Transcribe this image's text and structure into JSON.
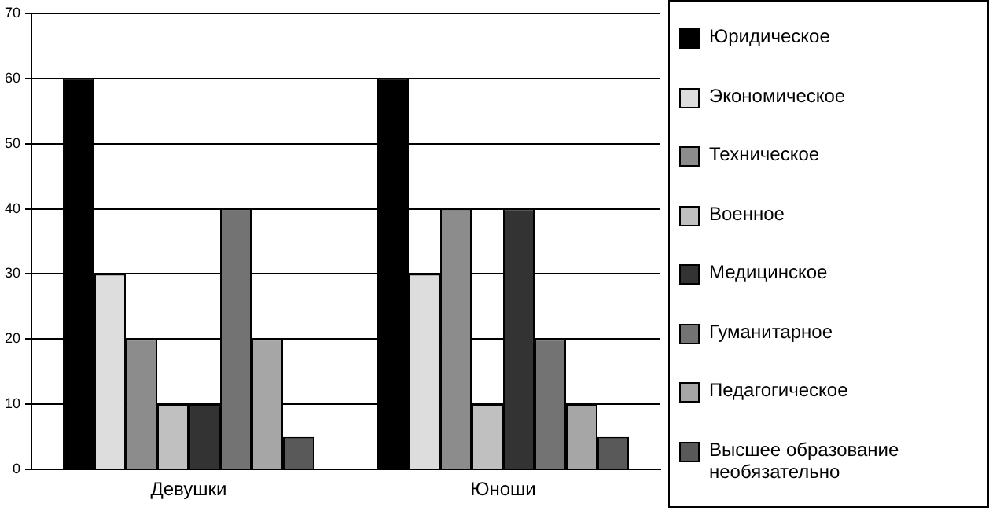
{
  "chart_data": {
    "type": "bar",
    "categories": [
      "Девушки",
      "Юноши"
    ],
    "series": [
      {
        "name": "Юридическое",
        "color": "#000000",
        "values": [
          60,
          60
        ]
      },
      {
        "name": "Экономическое",
        "color": "#dddddd",
        "values": [
          30,
          30
        ]
      },
      {
        "name": "Техническое",
        "color": "#8c8c8c",
        "values": [
          20,
          40
        ]
      },
      {
        "name": "Военное",
        "color": "#c0c0c0",
        "values": [
          10,
          10
        ]
      },
      {
        "name": "Медицинское",
        "color": "#333333",
        "values": [
          10,
          40
        ]
      },
      {
        "name": "Гуманитарное",
        "color": "#737373",
        "values": [
          40,
          20
        ]
      },
      {
        "name": "Педагогическое",
        "color": "#a6a6a6",
        "values": [
          20,
          10
        ]
      },
      {
        "name": "Высшее образование необязательно",
        "color": "#595959",
        "values": [
          5,
          5
        ]
      }
    ],
    "ylim": [
      0,
      70
    ],
    "yticks": [
      0,
      10,
      20,
      30,
      40,
      50,
      60,
      70
    ],
    "grid": "y",
    "legend": "right"
  }
}
